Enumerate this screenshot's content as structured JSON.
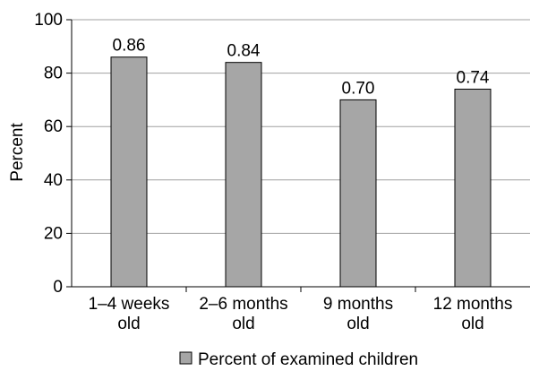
{
  "chart_data": {
    "type": "bar",
    "categories": [
      [
        "1–4 weeks",
        "old"
      ],
      [
        "2–6 months",
        "old"
      ],
      [
        "9 months",
        "old"
      ],
      [
        "12 months",
        "old"
      ]
    ],
    "values": [
      86,
      84,
      70,
      74
    ],
    "data_labels": [
      "0.86",
      "0.84",
      "0.70",
      "0.74"
    ],
    "ylabel": "Percent",
    "xlabel": "",
    "title": "",
    "ylim": [
      0,
      100
    ],
    "yticks": [
      "0",
      "20",
      "40",
      "60",
      "80",
      "100"
    ],
    "grid": "horizontal",
    "legend": {
      "position": "bottom-center",
      "entries": [
        "Percent of examined children"
      ]
    },
    "colors": {
      "bar_fill": "#a6a6a6",
      "bar_stroke": "#000000",
      "grid": "#a0a0a0",
      "axis": "#000000"
    }
  }
}
